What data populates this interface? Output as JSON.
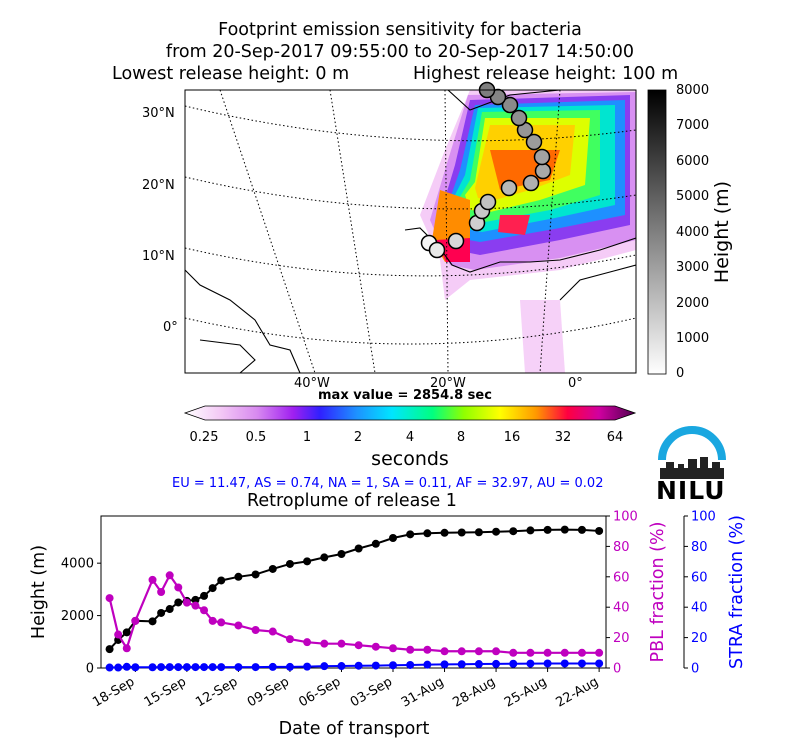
{
  "header": {
    "title_line1": "Footprint emission sensitivity for bacteria",
    "title_line2": "from 20-Sep-2017 09:55:00 to 20-Sep-2017 14:50:00",
    "release_low": "Lowest release height: 0 m",
    "release_high": "Highest release height: 100 m"
  },
  "map": {
    "lat_labels": [
      "30°N",
      "20°N",
      "10°N",
      "0°"
    ],
    "lon_labels": [
      "40°W",
      "20°W",
      "0°"
    ],
    "max_value_label": "max value = 2854.8 sec",
    "colorbar_ticks": [
      "0.25",
      "0.5",
      "1",
      "2",
      "4",
      "8",
      "16",
      "32",
      "64"
    ],
    "colorbar_label": "seconds",
    "height_colorbar_ticks": [
      "0",
      "1000",
      "2000",
      "3000",
      "4000",
      "5000",
      "6000",
      "7000",
      "8000"
    ],
    "height_colorbar_label": "Height (m)"
  },
  "fractions_text": "EU = 11.47,  AS = 0.74,  NA = 1,  SA = 0.11,  AF = 32.97,  AU = 0.02",
  "logo_text": "NILU",
  "colors": {
    "height_series": "#000000",
    "pbl_series": "#bf00bf",
    "stra_series": "#0000ff",
    "fractions_text": "#0000ff"
  },
  "chart_data": {
    "type": "line",
    "title": "Retroplume of release 1",
    "xlabel": "Date of transport",
    "ylabel": "Height (m)",
    "ylabel_right1": "PBL fraction (%)",
    "ylabel_right2": "STRA fraction (%)",
    "x_tick_labels": [
      "18-Sep",
      "15-Sep",
      "12-Sep",
      "09-Sep",
      "06-Sep",
      "03-Sep",
      "31-Aug",
      "28-Aug",
      "25-Aug",
      "22-Aug"
    ],
    "y_ticks": [
      "0",
      "2000",
      "4000"
    ],
    "right_ticks": [
      "0",
      "20",
      "40",
      "60",
      "80",
      "100"
    ],
    "ylim": [
      0,
      5800
    ],
    "right_ylim": [
      0,
      100
    ],
    "x_days_before_release": [
      0.5,
      1,
      1.5,
      2,
      3,
      3.5,
      4,
      4.5,
      5,
      5.5,
      6,
      6.5,
      7,
      8,
      9,
      10,
      11,
      12,
      13,
      14,
      15,
      16,
      17,
      18,
      19,
      20,
      21,
      22,
      23,
      24,
      25,
      26,
      27,
      28,
      29
    ],
    "series": [
      {
        "name": "Height",
        "axis": "left",
        "values": [
          720,
          1070,
          1360,
          1800,
          1780,
          2100,
          2250,
          2500,
          2560,
          2600,
          2750,
          3050,
          3340,
          3480,
          3570,
          3780,
          3970,
          4070,
          4220,
          4350,
          4560,
          4740,
          4960,
          5100,
          5140,
          5160,
          5170,
          5180,
          5200,
          5220,
          5250,
          5270,
          5280,
          5270,
          5230
        ]
      },
      {
        "name": "PBL fraction",
        "axis": "right",
        "values": [
          46,
          22,
          13,
          31,
          58,
          50,
          61,
          53,
          43,
          41,
          38,
          31,
          30,
          28,
          25,
          24,
          19,
          17,
          16,
          16,
          15,
          14,
          13,
          12,
          12,
          11,
          11,
          11,
          11,
          10,
          10,
          10,
          10,
          10,
          10
        ]
      },
      {
        "name": "STRA fraction",
        "axis": "right",
        "values": [
          0.3,
          0.3,
          0.8,
          0.5,
          0.5,
          0.6,
          0.6,
          0.6,
          0.6,
          0.6,
          0.6,
          0.6,
          0.6,
          0.6,
          0.6,
          0.7,
          0.7,
          0.9,
          1.2,
          1.3,
          1.5,
          1.6,
          1.8,
          2,
          2.2,
          2.4,
          2.5,
          2.6,
          2.7,
          2.8,
          2.9,
          3,
          3,
          3,
          3
        ]
      }
    ]
  }
}
